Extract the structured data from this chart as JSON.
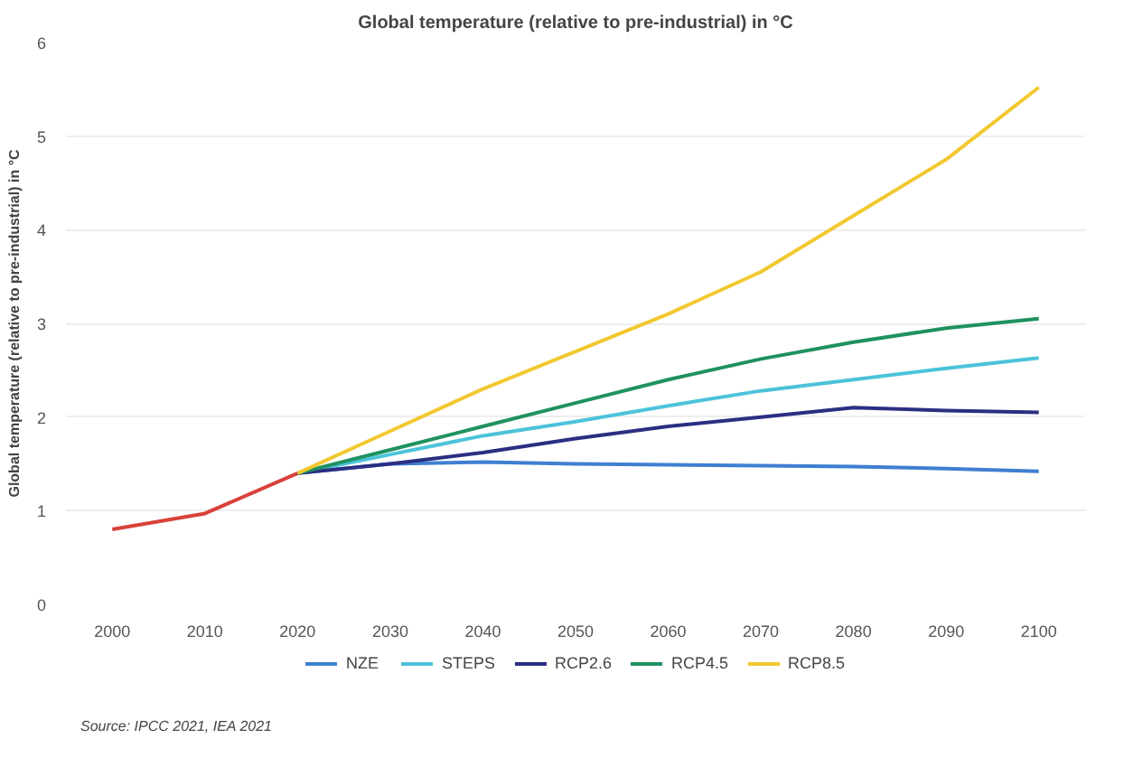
{
  "chart_data": {
    "type": "line",
    "title": "Global temperature (relative to pre-industrial) in °C",
    "ylabel": "Global temperature (relative to pre-industrial) in °C",
    "series": [
      {
        "color": "#d9413a",
        "x": [
          2000,
          2010,
          2020
        ],
        "values": [
          0.8,
          0.97,
          1.4
        ]
      },
      {
        "name": "NZE",
        "color": "#3f7fd1",
        "x": [
          2020,
          2030,
          2040,
          2050,
          2060,
          2070,
          2080,
          2090,
          2100
        ],
        "values": [
          1.4,
          1.5,
          1.52,
          1.5,
          1.49,
          1.48,
          1.47,
          1.45,
          1.42
        ]
      },
      {
        "name": "STEPS",
        "color": "#4cc3d9",
        "x": [
          2020,
          2030,
          2040,
          2050,
          2060,
          2070,
          2080,
          2090,
          2100
        ],
        "values": [
          1.4,
          1.6,
          1.8,
          1.95,
          2.12,
          2.28,
          2.4,
          2.52,
          2.63
        ]
      },
      {
        "name": "RCP2.6",
        "color": "#2b2f82",
        "x": [
          2020,
          2030,
          2040,
          2050,
          2060,
          2070,
          2080,
          2090,
          2100
        ],
        "values": [
          1.4,
          1.5,
          1.62,
          1.77,
          1.9,
          2.0,
          2.1,
          2.07,
          2.05
        ]
      },
      {
        "name": "RCP4.5",
        "color": "#1f9160",
        "x": [
          2020,
          2030,
          2040,
          2050,
          2060,
          2070,
          2080,
          2090,
          2100
        ],
        "values": [
          1.4,
          1.65,
          1.9,
          2.15,
          2.4,
          2.62,
          2.8,
          2.95,
          3.05
        ]
      },
      {
        "name": "RCP8.5",
        "color": "#f2c830",
        "x": [
          2020,
          2030,
          2040,
          2050,
          2060,
          2070,
          2080,
          2090,
          2100
        ],
        "values": [
          1.4,
          1.85,
          2.3,
          2.7,
          3.1,
          3.55,
          4.15,
          4.75,
          5.52
        ]
      }
    ],
    "xlim": [
      1995,
      2105
    ],
    "xticks": [
      2000,
      2010,
      2020,
      2030,
      2040,
      2050,
      2060,
      2070,
      2080,
      2090,
      2100
    ],
    "ylim": [
      0,
      6
    ],
    "yticks": [
      0,
      1,
      2,
      3,
      4,
      5,
      6
    ],
    "grid": "y",
    "legend": "bottom",
    "line_style": "solid",
    "annotations": [
      "Source: IPCC 2021, IEA 2021"
    ]
  }
}
